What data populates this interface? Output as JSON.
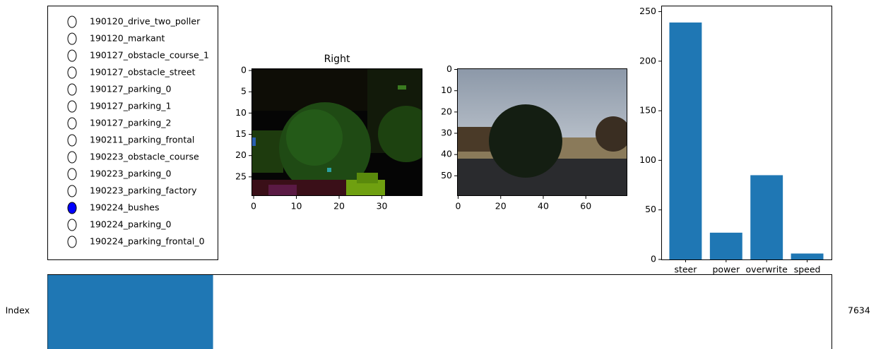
{
  "radio_buttons": {
    "options": [
      "190120_drive_two_poller",
      "190120_markant",
      "190127_obstacle_course_1",
      "190127_obstacle_street",
      "190127_parking_0",
      "190127_parking_1",
      "190127_parking_2",
      "190211_parking_frontal",
      "190223_obstacle_course",
      "190223_parking_0",
      "190223_parking_factory",
      "190224_bushes",
      "190224_parking_0",
      "190224_parking_frontal_0"
    ],
    "selected": 11,
    "active_color": "#0000ff"
  },
  "images": [
    {
      "title": "Right",
      "xlim": [
        -0.5,
        39.5
      ],
      "ylim": [
        29.5,
        -0.5
      ],
      "xticks": [
        0,
        10,
        20,
        30
      ],
      "yticks": [
        0,
        5,
        10,
        15,
        20,
        25
      ]
    },
    {
      "xlim": [
        -0.5,
        79.5
      ],
      "ylim": [
        59.5,
        -0.5
      ],
      "xticks": [
        0,
        20,
        40,
        60
      ],
      "yticks": [
        0,
        10,
        20,
        30,
        40,
        50
      ]
    }
  ],
  "chart_data": {
    "type": "bar",
    "categories": [
      "steer",
      "power",
      "overwrite",
      "speed"
    ],
    "values": [
      239,
      27,
      85,
      6
    ],
    "color": "#1f77b4",
    "ylim": [
      0,
      256
    ],
    "yticks": [
      0,
      50,
      100,
      150,
      200,
      250
    ]
  },
  "slider": {
    "label": "Index",
    "value": 7634,
    "min": 0,
    "max": 36200,
    "color": "#1f77b4"
  }
}
